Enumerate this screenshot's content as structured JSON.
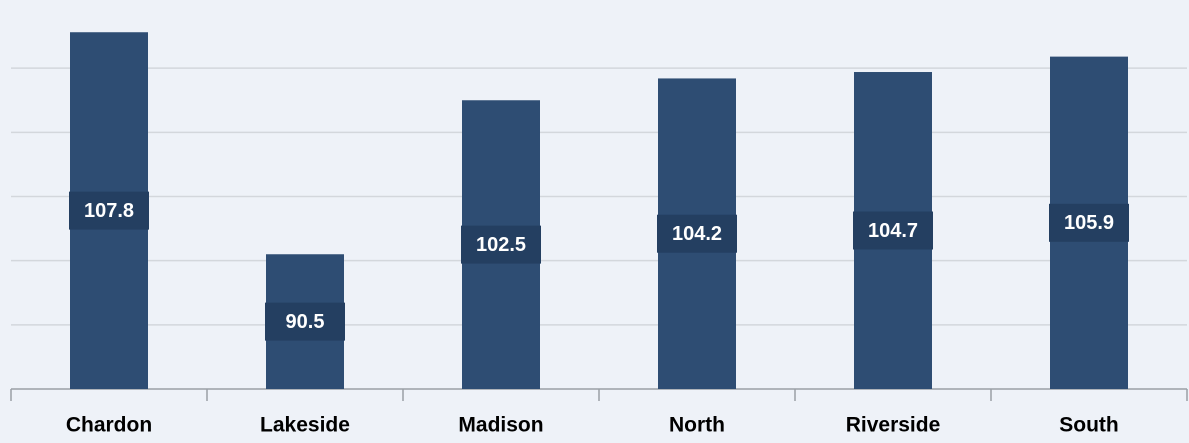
{
  "chart_data": {
    "type": "bar",
    "categories": [
      "Chardon",
      "Lakeside",
      "Madison",
      "North",
      "Riverside",
      "South"
    ],
    "values": [
      107.8,
      90.5,
      102.5,
      104.2,
      104.7,
      105.9
    ],
    "color": "#2e4d73",
    "ylim": [
      80,
      110
    ],
    "yticks": [
      85,
      90,
      95,
      100,
      105
    ],
    "grid": true
  }
}
